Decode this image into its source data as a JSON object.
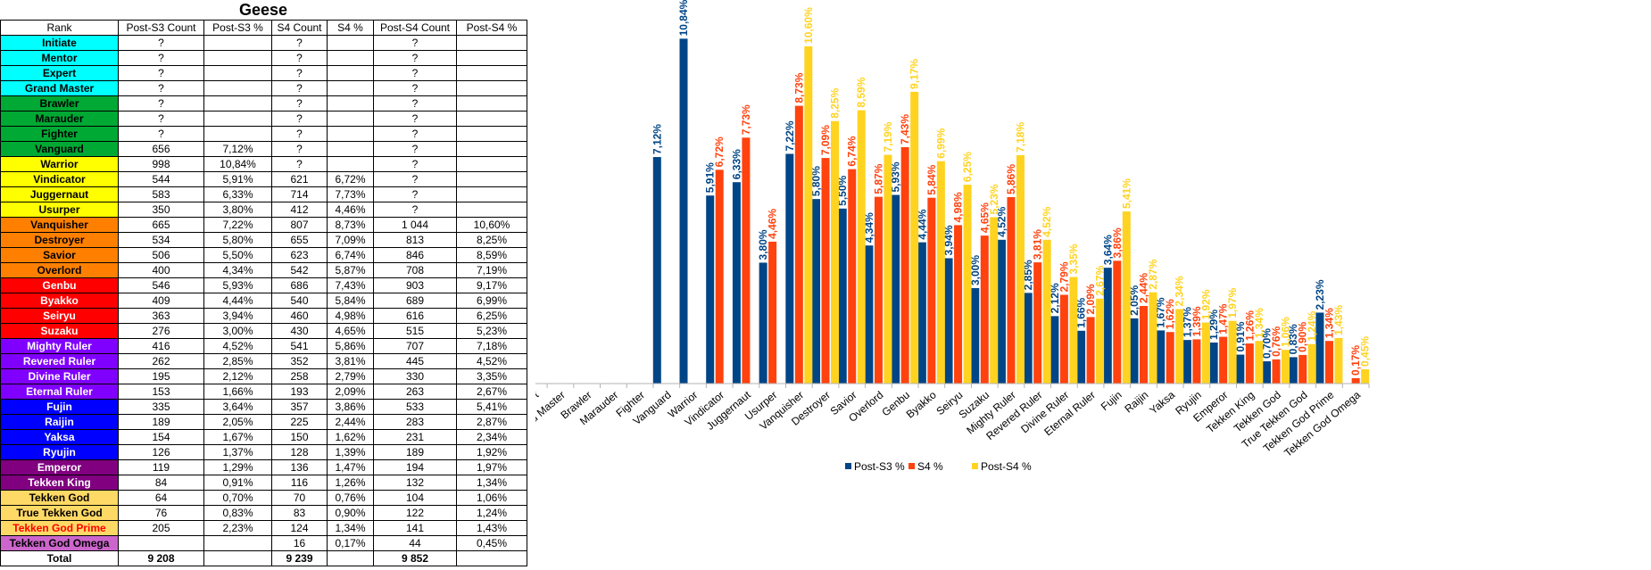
{
  "table": {
    "title": "Geese",
    "headers": [
      "Rank",
      "Post-S3 Count",
      "Post-S3 %",
      "S4 Count",
      "S4 %",
      "Post-S4 Count",
      "Post-S4 %"
    ],
    "rows": [
      {
        "rank": "Initiate",
        "bg": "#00ffff",
        "fg": "#000000",
        "c1": "?",
        "p1": "",
        "c2": "?",
        "p2": "",
        "c3": "?",
        "p3": ""
      },
      {
        "rank": "Mentor",
        "bg": "#00ffff",
        "fg": "#000000",
        "c1": "?",
        "p1": "",
        "c2": "?",
        "p2": "",
        "c3": "?",
        "p3": ""
      },
      {
        "rank": "Expert",
        "bg": "#00ffff",
        "fg": "#000000",
        "c1": "?",
        "p1": "",
        "c2": "?",
        "p2": "",
        "c3": "?",
        "p3": ""
      },
      {
        "rank": "Grand Master",
        "bg": "#00ffff",
        "fg": "#000000",
        "c1": "?",
        "p1": "",
        "c2": "?",
        "p2": "",
        "c3": "?",
        "p3": ""
      },
      {
        "rank": "Brawler",
        "bg": "#00a933",
        "fg": "#000000",
        "c1": "?",
        "p1": "",
        "c2": "?",
        "p2": "",
        "c3": "?",
        "p3": ""
      },
      {
        "rank": "Marauder",
        "bg": "#00a933",
        "fg": "#000000",
        "c1": "?",
        "p1": "",
        "c2": "?",
        "p2": "",
        "c3": "?",
        "p3": ""
      },
      {
        "rank": "Fighter",
        "bg": "#00a933",
        "fg": "#000000",
        "c1": "?",
        "p1": "",
        "c2": "?",
        "p2": "",
        "c3": "?",
        "p3": ""
      },
      {
        "rank": "Vanguard",
        "bg": "#00a933",
        "fg": "#000000",
        "c1": "656",
        "p1": "7,12%",
        "c2": "?",
        "p2": "",
        "c3": "?",
        "p3": ""
      },
      {
        "rank": "Warrior",
        "bg": "#ffff00",
        "fg": "#000000",
        "c1": "998",
        "p1": "10,84%",
        "c2": "?",
        "p2": "",
        "c3": "?",
        "p3": ""
      },
      {
        "rank": "Vindicator",
        "bg": "#ffff00",
        "fg": "#000000",
        "c1": "544",
        "p1": "5,91%",
        "c2": "621",
        "p2": "6,72%",
        "c3": "?",
        "p3": ""
      },
      {
        "rank": "Juggernaut",
        "bg": "#ffff00",
        "fg": "#000000",
        "c1": "583",
        "p1": "6,33%",
        "c2": "714",
        "p2": "7,73%",
        "c3": "?",
        "p3": ""
      },
      {
        "rank": "Usurper",
        "bg": "#ffff00",
        "fg": "#000000",
        "c1": "350",
        "p1": "3,80%",
        "c2": "412",
        "p2": "4,46%",
        "c3": "?",
        "p3": ""
      },
      {
        "rank": "Vanquisher",
        "bg": "#ff8000",
        "fg": "#000000",
        "c1": "665",
        "p1": "7,22%",
        "c2": "807",
        "p2": "8,73%",
        "c3": "1 044",
        "p3": "10,60%"
      },
      {
        "rank": "Destroyer",
        "bg": "#ff8000",
        "fg": "#000000",
        "c1": "534",
        "p1": "5,80%",
        "c2": "655",
        "p2": "7,09%",
        "c3": "813",
        "p3": "8,25%"
      },
      {
        "rank": "Savior",
        "bg": "#ff8000",
        "fg": "#000000",
        "c1": "506",
        "p1": "5,50%",
        "c2": "623",
        "p2": "6,74%",
        "c3": "846",
        "p3": "8,59%"
      },
      {
        "rank": "Overlord",
        "bg": "#ff8000",
        "fg": "#000000",
        "c1": "400",
        "p1": "4,34%",
        "c2": "542",
        "p2": "5,87%",
        "c3": "708",
        "p3": "7,19%"
      },
      {
        "rank": "Genbu",
        "bg": "#ff0000",
        "fg": "#ffffff",
        "c1": "546",
        "p1": "5,93%",
        "c2": "686",
        "p2": "7,43%",
        "c3": "903",
        "p3": "9,17%"
      },
      {
        "rank": "Byakko",
        "bg": "#ff0000",
        "fg": "#ffffff",
        "c1": "409",
        "p1": "4,44%",
        "c2": "540",
        "p2": "5,84%",
        "c3": "689",
        "p3": "6,99%"
      },
      {
        "rank": "Seiryu",
        "bg": "#ff0000",
        "fg": "#ffffff",
        "c1": "363",
        "p1": "3,94%",
        "c2": "460",
        "p2": "4,98%",
        "c3": "616",
        "p3": "6,25%"
      },
      {
        "rank": "Suzaku",
        "bg": "#ff0000",
        "fg": "#ffffff",
        "c1": "276",
        "p1": "3,00%",
        "c2": "430",
        "p2": "4,65%",
        "c3": "515",
        "p3": "5,23%"
      },
      {
        "rank": "Mighty Ruler",
        "bg": "#8000ff",
        "fg": "#ffffff",
        "c1": "416",
        "p1": "4,52%",
        "c2": "541",
        "p2": "5,86%",
        "c3": "707",
        "p3": "7,18%"
      },
      {
        "rank": "Revered Ruler",
        "bg": "#8000ff",
        "fg": "#ffffff",
        "c1": "262",
        "p1": "2,85%",
        "c2": "352",
        "p2": "3,81%",
        "c3": "445",
        "p3": "4,52%"
      },
      {
        "rank": "Divine Ruler",
        "bg": "#8000ff",
        "fg": "#ffffff",
        "c1": "195",
        "p1": "2,12%",
        "c2": "258",
        "p2": "2,79%",
        "c3": "330",
        "p3": "3,35%"
      },
      {
        "rank": "Eternal Ruler",
        "bg": "#8000ff",
        "fg": "#ffffff",
        "c1": "153",
        "p1": "1,66%",
        "c2": "193",
        "p2": "2,09%",
        "c3": "263",
        "p3": "2,67%"
      },
      {
        "rank": "Fujin",
        "bg": "#0000ff",
        "fg": "#ffffff",
        "c1": "335",
        "p1": "3,64%",
        "c2": "357",
        "p2": "3,86%",
        "c3": "533",
        "p3": "5,41%"
      },
      {
        "rank": "Raijin",
        "bg": "#0000ff",
        "fg": "#ffffff",
        "c1": "189",
        "p1": "2,05%",
        "c2": "225",
        "p2": "2,44%",
        "c3": "283",
        "p3": "2,87%"
      },
      {
        "rank": "Yaksa",
        "bg": "#0000ff",
        "fg": "#ffffff",
        "c1": "154",
        "p1": "1,67%",
        "c2": "150",
        "p2": "1,62%",
        "c3": "231",
        "p3": "2,34%"
      },
      {
        "rank": "Ryujin",
        "bg": "#0000ff",
        "fg": "#ffffff",
        "c1": "126",
        "p1": "1,37%",
        "c2": "128",
        "p2": "1,39%",
        "c3": "189",
        "p3": "1,92%"
      },
      {
        "rank": "Emperor",
        "bg": "#800080",
        "fg": "#ffffff",
        "c1": "119",
        "p1": "1,29%",
        "c2": "136",
        "p2": "1,47%",
        "c3": "194",
        "p3": "1,97%"
      },
      {
        "rank": "Tekken King",
        "bg": "#800080",
        "fg": "#ffffff",
        "c1": "84",
        "p1": "0,91%",
        "c2": "116",
        "p2": "1,26%",
        "c3": "132",
        "p3": "1,34%"
      },
      {
        "rank": "Tekken God",
        "bg": "#ffd966",
        "fg": "#000000",
        "c1": "64",
        "p1": "0,70%",
        "c2": "70",
        "p2": "0,76%",
        "c3": "104",
        "p3": "1,06%"
      },
      {
        "rank": "True Tekken God",
        "bg": "#ffd966",
        "fg": "#000000",
        "c1": "76",
        "p1": "0,83%",
        "c2": "83",
        "p2": "0,90%",
        "c3": "122",
        "p3": "1,24%"
      },
      {
        "rank": "Tekken God Prime",
        "bg": "#ffd966",
        "fg": "#ff0000",
        "c1": "205",
        "p1": "2,23%",
        "c2": "124",
        "p2": "1,34%",
        "c3": "141",
        "p3": "1,43%"
      },
      {
        "rank": "Tekken God Omega",
        "bg": "#cc66cc",
        "fg": "#000000",
        "c1": "",
        "p1": "",
        "c2": "16",
        "p2": "0,17%",
        "c3": "44",
        "p3": "0,45%"
      }
    ],
    "total": {
      "rank": "Total",
      "c1": "9 208",
      "p1": "",
      "c2": "9 239",
      "p2": "",
      "c3": "9 852",
      "p3": ""
    }
  },
  "chart_data": {
    "type": "bar",
    "categories": [
      "Initiate",
      "Mentor",
      "Expert",
      "Grand Master",
      "Brawler",
      "Marauder",
      "Fighter",
      "Vanguard",
      "Warrior",
      "Vindicator",
      "Juggernaut",
      "Usurper",
      "Vanquisher",
      "Destroyer",
      "Savior",
      "Overlord",
      "Genbu",
      "Byakko",
      "Seiryu",
      "Suzaku",
      "Mighty Ruler",
      "Revered Ruler",
      "Divine Ruler",
      "Eternal Ruler",
      "Fujin",
      "Raijin",
      "Yaksa",
      "Ryujin",
      "Emperor",
      "Tekken King",
      "Tekken God",
      "True Tekken God",
      "Tekken God Prime",
      "Tekken God Omega"
    ],
    "series": [
      {
        "name": "Post-S3 %",
        "color": "#004586",
        "values": [
          null,
          null,
          null,
          null,
          null,
          null,
          null,
          7.12,
          10.84,
          5.91,
          6.33,
          3.8,
          7.22,
          5.8,
          5.5,
          4.34,
          5.93,
          4.44,
          3.94,
          3.0,
          4.52,
          2.85,
          2.12,
          1.66,
          3.64,
          2.05,
          1.67,
          1.37,
          1.29,
          0.91,
          0.7,
          0.83,
          2.23,
          null
        ],
        "labels": [
          "",
          "",
          "",
          "",
          "",
          "",
          "",
          "7,12%",
          "10,84%",
          "5,91%",
          "6,33%",
          "3,80%",
          "7,22%",
          "5,80%",
          "5,50%",
          "4,34%",
          "5,93%",
          "4,44%",
          "3,94%",
          "3,00%",
          "4,52%",
          "2,85%",
          "2,12%",
          "1,66%",
          "3,64%",
          "2,05%",
          "1,67%",
          "1,37%",
          "1,29%",
          "0,91%",
          "0,70%",
          "0,83%",
          "2,23%",
          ""
        ]
      },
      {
        "name": "S4 %",
        "color": "#ff420e",
        "values": [
          null,
          null,
          null,
          null,
          null,
          null,
          null,
          null,
          null,
          6.72,
          7.73,
          4.46,
          8.73,
          7.09,
          6.74,
          5.87,
          7.43,
          5.84,
          4.98,
          4.65,
          5.86,
          3.81,
          2.79,
          2.09,
          3.86,
          2.44,
          1.62,
          1.39,
          1.47,
          1.26,
          0.76,
          0.9,
          1.34,
          0.17
        ],
        "labels": [
          "",
          "",
          "",
          "",
          "",
          "",
          "",
          "",
          "",
          "6,72%",
          "7,73%",
          "4,46%",
          "8,73%",
          "7,09%",
          "6,74%",
          "5,87%",
          "7,43%",
          "5,84%",
          "4,98%",
          "4,65%",
          "5,86%",
          "3,81%",
          "2,79%",
          "2,09%",
          "3,86%",
          "2,44%",
          "1,62%",
          "1,39%",
          "1,47%",
          "1,26%",
          "0,76%",
          "0,90%",
          "1,34%",
          "0,17%"
        ]
      },
      {
        "name": "Post-S4 %",
        "color": "#ffd320",
        "values": [
          null,
          null,
          null,
          null,
          null,
          null,
          null,
          null,
          null,
          null,
          null,
          null,
          10.6,
          8.25,
          8.59,
          7.19,
          9.17,
          6.99,
          6.25,
          5.23,
          7.18,
          4.52,
          3.35,
          2.67,
          5.41,
          2.87,
          2.34,
          1.92,
          1.97,
          1.34,
          1.06,
          1.24,
          1.43,
          0.45
        ],
        "labels": [
          "",
          "",
          "",
          "",
          "",
          "",
          "",
          "",
          "",
          "",
          "",
          "",
          "10,60%",
          "8,25%",
          "8,59%",
          "7,19%",
          "9,17%",
          "6,99%",
          "6,25%",
          "5,23%",
          "7,18%",
          "4,52%",
          "3,35%",
          "2,67%",
          "5,41%",
          "2,87%",
          "2,34%",
          "1,92%",
          "1,97%",
          "1,34%",
          "1,06%",
          "1,24%",
          "1,43%",
          "0,45%"
        ]
      }
    ],
    "title": "",
    "xlabel": "",
    "ylabel": "",
    "ylim": [
      0,
      12
    ],
    "grid": false,
    "legend_position": "bottom"
  }
}
